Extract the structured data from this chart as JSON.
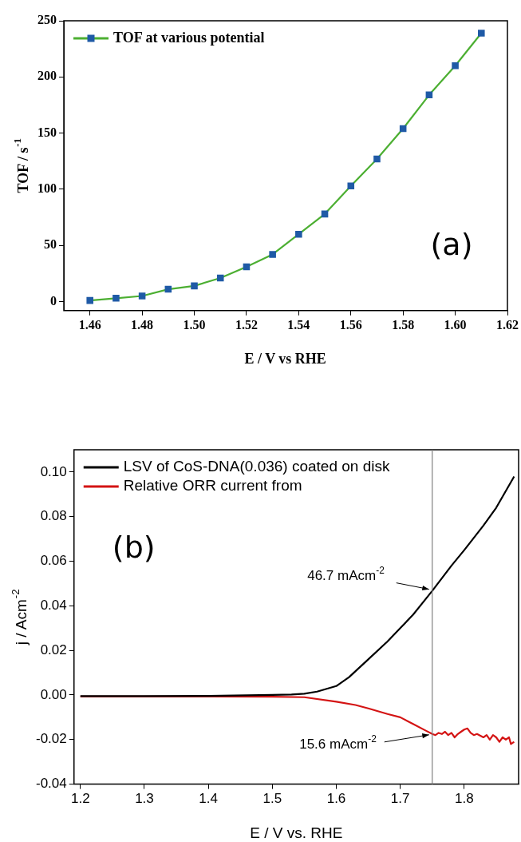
{
  "chart_data": [
    {
      "type": "line",
      "xlabel": "E / V vs RHE",
      "ylabel": "TOF / s$^{-1}$",
      "x": [
        1.46,
        1.47,
        1.48,
        1.49,
        1.5,
        1.51,
        1.52,
        1.53,
        1.54,
        1.55,
        1.56,
        1.57,
        1.58,
        1.59,
        1.6,
        1.61
      ],
      "series": [
        {
          "name": "TOF at various potential",
          "color": "#4caf32",
          "colors": [
            "#1f5aa6",
            "#1f5aa6",
            "#1f5aa6",
            "#1f5aa6",
            "#1f5aa6",
            "#1f5aa6",
            "#1f5aa6",
            "#1f5aa6",
            "#1f5aa6",
            "#1f5aa6",
            "#1f5aa6",
            "#1f5aa6",
            "#1f5aa6",
            "#1f5aa6",
            "#1f5aa6",
            "#1f5aa6"
          ],
          "values": [
            1,
            3,
            5,
            11,
            14,
            21,
            31,
            42,
            60,
            78,
            103,
            127,
            154,
            184,
            210,
            239
          ]
        }
      ],
      "xlim": [
        1.45,
        1.62
      ],
      "xticks": [
        1.46,
        1.48,
        {
          "value": 1.5,
          "label": "1.50"
        },
        1.52,
        1.54,
        1.56,
        1.58,
        {
          "value": 1.6,
          "label": "1.60"
        },
        1.62
      ],
      "ylim": [
        -8,
        250
      ],
      "yticks": [
        0,
        50,
        100,
        150,
        200,
        250
      ],
      "marker": "square",
      "line_style": "solid",
      "grid": false,
      "legend": "top left",
      "annotations": [
        "(a)"
      ]
    },
    {
      "type": "line",
      "xlabel": "E / V vs. RHE",
      "ylabel": "j / Acm$^{-2}$",
      "series": [
        {
          "name": "LSV of CoS-DNA(0.036) coated on disk",
          "color": "#000000",
          "x": [
            1.2,
            1.3,
            1.4,
            1.5,
            1.53,
            1.55,
            1.57,
            1.6,
            1.62,
            1.65,
            1.68,
            1.7,
            1.72,
            1.75,
            1.78,
            1.8,
            1.83,
            1.85,
            1.878
          ],
          "values": [
            -0.0005,
            -0.0005,
            -0.0004,
            0,
            0.0002,
            0.0006,
            0.0015,
            0.004,
            0.008,
            0.016,
            0.024,
            0.03,
            0.036,
            0.0467,
            0.058,
            0.065,
            0.076,
            0.084,
            0.098
          ]
        },
        {
          "name": "Relative ORR current from",
          "color": "#d41414",
          "x": [
            1.2,
            1.3,
            1.4,
            1.5,
            1.55,
            1.6,
            1.63,
            1.65,
            1.68,
            1.7,
            1.72,
            1.74,
            1.75,
            1.755,
            1.76,
            1.765,
            1.77,
            1.775,
            1.78,
            1.785,
            1.79,
            1.795,
            1.8,
            1.805,
            1.81,
            1.815,
            1.82,
            1.83,
            1.835,
            1.84,
            1.845,
            1.85,
            1.855,
            1.86,
            1.865,
            1.87,
            1.873,
            1.878
          ],
          "values": [
            -0.0007,
            -0.0007,
            -0.0007,
            -0.0008,
            -0.001,
            -0.003,
            -0.0045,
            -0.006,
            -0.0085,
            -0.01,
            -0.013,
            -0.016,
            -0.0175,
            -0.018,
            -0.017,
            -0.0175,
            -0.0165,
            -0.018,
            -0.017,
            -0.019,
            -0.0175,
            -0.0165,
            -0.0155,
            -0.015,
            -0.017,
            -0.018,
            -0.0175,
            -0.019,
            -0.018,
            -0.02,
            -0.018,
            -0.019,
            -0.021,
            -0.019,
            -0.02,
            -0.019,
            -0.022,
            -0.021
          ]
        }
      ],
      "xlim": [
        1.19,
        1.885
      ],
      "xticks": [
        1.2,
        1.3,
        1.4,
        1.5,
        1.6,
        1.7,
        1.8
      ],
      "ylim": [
        -0.04,
        0.11
      ],
      "yticks": [
        -0.04,
        -0.02,
        {
          "value": 0,
          "label": "0.00"
        },
        0.02,
        0.04,
        0.06,
        0.08,
        {
          "value": 0.1,
          "label": "0.10"
        }
      ],
      "marker": "none",
      "line_style": "solid",
      "grid": false,
      "legend": "top left",
      "ref_lines": [
        {
          "axis": "x",
          "value": 1.75,
          "color": "#808080"
        }
      ],
      "annotations": [
        "(b)",
        {
          "text": "46.7 mAcm$^{-2}$",
          "x": 1.75,
          "y": 0.0467
        },
        {
          "text": "15.6 mAcm$^{-2}$",
          "x": 1.75,
          "y": -0.0175
        }
      ]
    }
  ]
}
